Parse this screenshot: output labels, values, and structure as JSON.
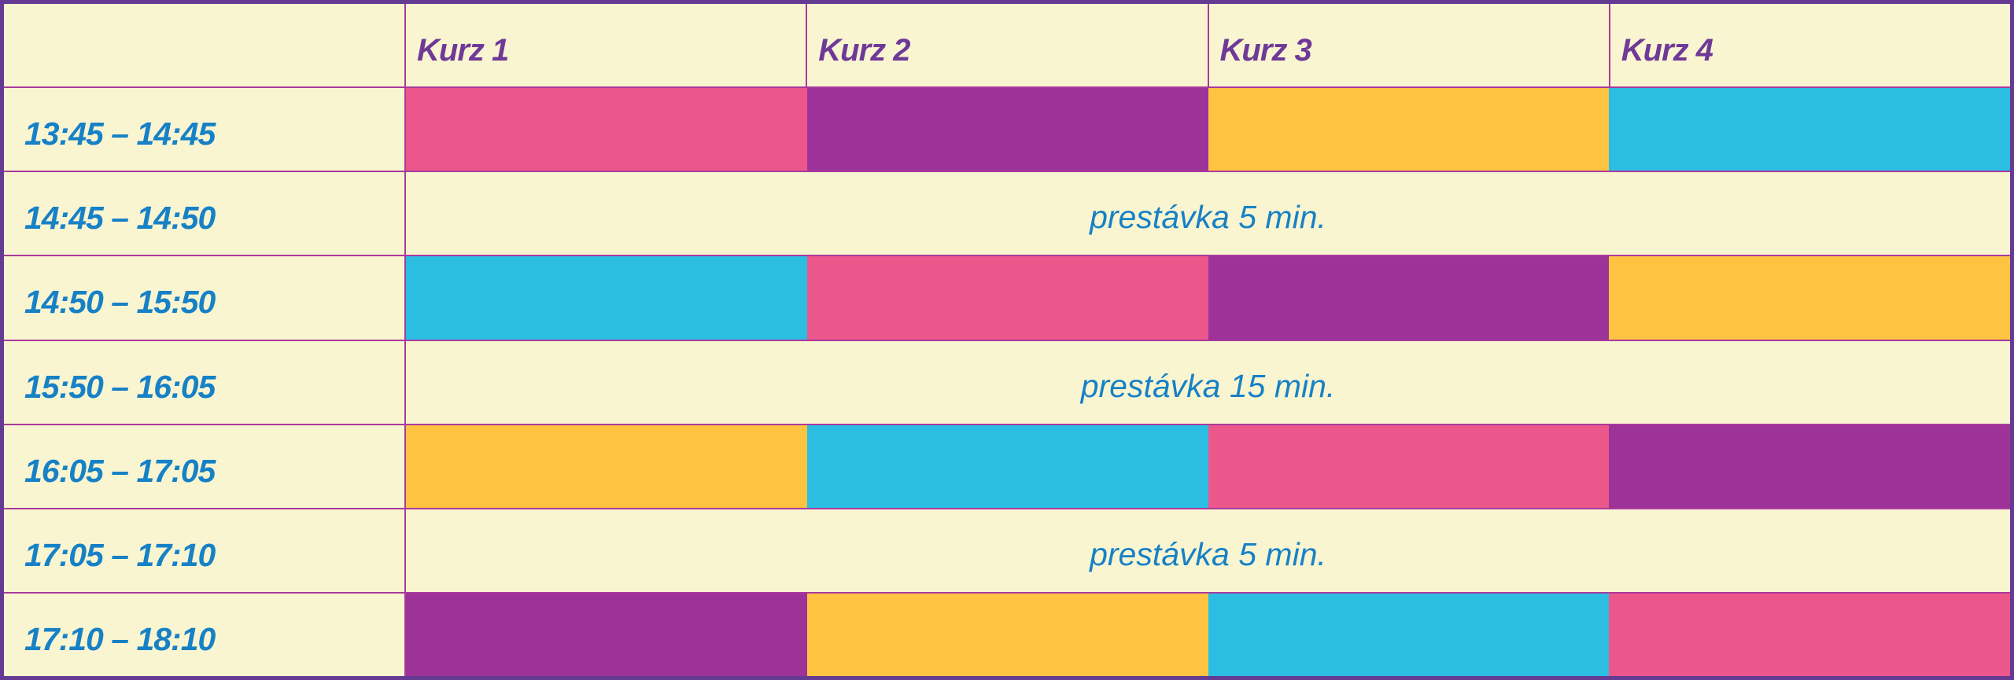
{
  "palette": {
    "background": "#f9f5d1",
    "outer_border": "#653a92",
    "grid_line": "#a93a9e",
    "header_text": "#6f3997",
    "time_text": "#1781c6",
    "break_text": "#1781c6",
    "pink": "#ec578b",
    "purple": "#9d3399",
    "yellow": "#ffc342",
    "cyan": "#2bbde2"
  },
  "header": {
    "columns": [
      "Kurz 1",
      "Kurz 2",
      "Kurz 3",
      "Kurz 4"
    ]
  },
  "rows": [
    {
      "time": "13:45 – 14:45",
      "type": "courses",
      "cells": [
        {
          "name": "pink",
          "color": "#ec578b"
        },
        {
          "name": "purple",
          "color": "#9d3399"
        },
        {
          "name": "yellow",
          "color": "#ffc342"
        },
        {
          "name": "cyan",
          "color": "#2bbde2"
        }
      ]
    },
    {
      "time": "14:45 – 14:50",
      "type": "break",
      "label": "prestávka 5 min."
    },
    {
      "time": "14:50 – 15:50",
      "type": "courses",
      "cells": [
        {
          "name": "cyan",
          "color": "#2bbde2"
        },
        {
          "name": "pink",
          "color": "#ec578b"
        },
        {
          "name": "purple",
          "color": "#9d3399"
        },
        {
          "name": "yellow",
          "color": "#ffc342"
        }
      ]
    },
    {
      "time": "15:50 – 16:05",
      "type": "break",
      "label": "prestávka 15 min."
    },
    {
      "time": "16:05 – 17:05",
      "type": "courses",
      "cells": [
        {
          "name": "yellow",
          "color": "#ffc342"
        },
        {
          "name": "cyan",
          "color": "#2bbde2"
        },
        {
          "name": "pink",
          "color": "#ec578b"
        },
        {
          "name": "purple",
          "color": "#9d3399"
        }
      ]
    },
    {
      "time": "17:05 – 17:10",
      "type": "break",
      "label": "prestávka 5 min."
    },
    {
      "time": "17:10 – 18:10",
      "type": "courses",
      "cells": [
        {
          "name": "purple",
          "color": "#9d3399"
        },
        {
          "name": "yellow",
          "color": "#ffc342"
        },
        {
          "name": "cyan",
          "color": "#2bbde2"
        },
        {
          "name": "pink",
          "color": "#ec578b"
        }
      ]
    }
  ]
}
